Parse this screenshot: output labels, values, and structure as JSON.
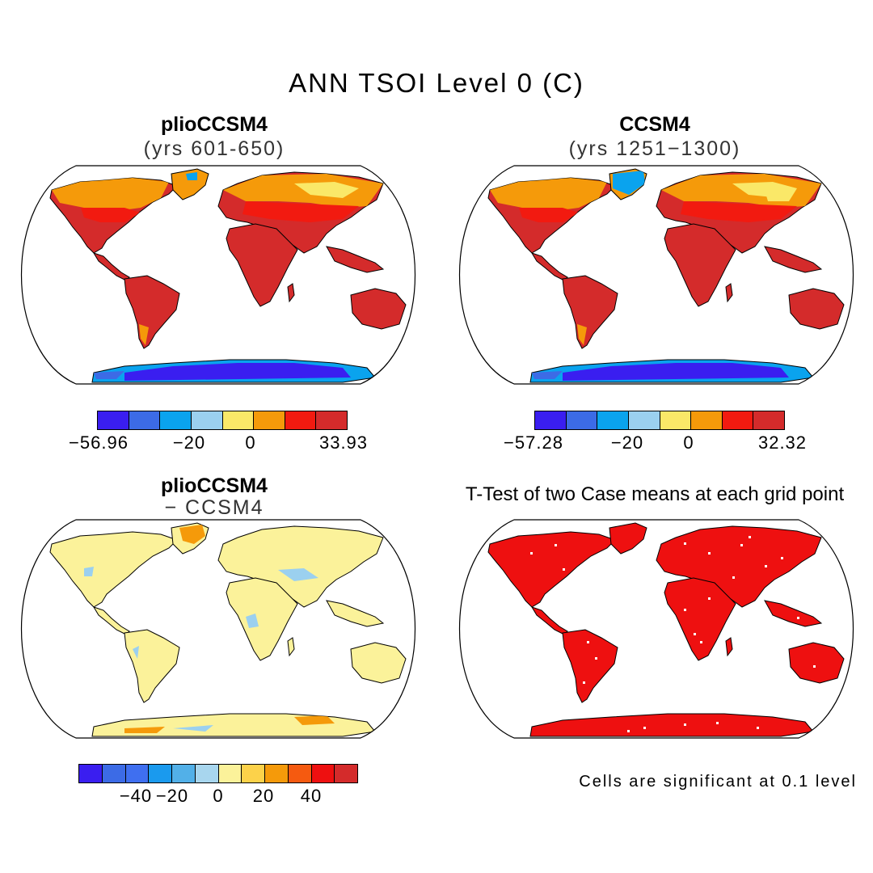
{
  "figure": {
    "title": "ANN TSOI Level 0 (C)",
    "note": "Cells are significant at 0.1 level"
  },
  "colors": {
    "ocean": "#ffffff",
    "deep_red": "#d42b2b",
    "red": "#f21a10",
    "orange": "#f59a0a",
    "yellow": "#fae868",
    "lightyellow": "#fbf29a",
    "lightblue": "#9bd0ef",
    "cyan": "#0aa3ee",
    "blue": "#3c6be6",
    "violet": "#3a1ef0",
    "sig_red": "#ee1010"
  },
  "panels": [
    {
      "title": "plioCCSM4",
      "subtitle": "(yrs 601-650)",
      "colorbar": {
        "colors": [
          "#3a1ef0",
          "#3c6be6",
          "#0aa3ee",
          "#9bd0ef",
          "#fae868",
          "#f59a0a",
          "#f21a10",
          "#d42b2b"
        ],
        "labels": [
          "−56.96",
          "−20",
          "0",
          "33.93"
        ]
      }
    },
    {
      "title": "CCSM4",
      "subtitle": "(yrs 1251−1300)",
      "colorbar": {
        "colors": [
          "#3a1ef0",
          "#3c6be6",
          "#0aa3ee",
          "#9bd0ef",
          "#fae868",
          "#f59a0a",
          "#f21a10",
          "#d42b2b"
        ],
        "labels": [
          "−57.28",
          "−20",
          "0",
          "32.32"
        ]
      }
    },
    {
      "title": "plioCCSM4",
      "subtitle": "− CCSM4",
      "colorbar": {
        "colors": [
          "#3a1ef0",
          "#3c6be6",
          "#3f6ff0",
          "#1a9aee",
          "#52b0e8",
          "#a8d6ee",
          "#fbf29a",
          "#fcd24a",
          "#f59a0a",
          "#f55a10",
          "#ee1010",
          "#d42b2b"
        ],
        "labels": [
          "−40",
          "−20",
          "0",
          "20",
          "40"
        ]
      }
    },
    {
      "title": "T-Test of two Case means at each grid point"
    }
  ]
}
